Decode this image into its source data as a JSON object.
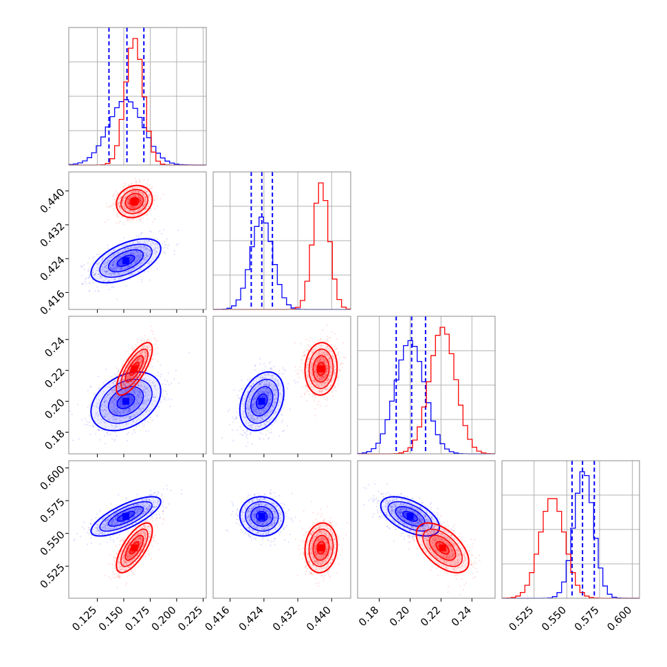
{
  "chart_data": {
    "type": "corner",
    "parameters": 4,
    "grid": true,
    "colors": {
      "series_a": "#0000ff",
      "series_b": "#ff0000"
    },
    "axes": [
      {
        "range": [
          0.098,
          0.228
        ],
        "ticks": [
          0.125,
          0.15,
          0.175,
          0.2,
          0.225
        ],
        "tick_labels": [
          "0.125",
          "0.150",
          "0.175",
          "0.200",
          "0.225"
        ]
      },
      {
        "range": [
          0.412,
          0.4445
        ],
        "ticks": [
          0.416,
          0.424,
          0.432,
          0.44
        ],
        "tick_labels": [
          "0.416",
          "0.424",
          "0.432",
          "0.440"
        ]
      },
      {
        "range": [
          0.166,
          0.255
        ],
        "ticks": [
          0.18,
          0.2,
          0.22,
          0.24
        ],
        "tick_labels": [
          "0.18",
          "0.20",
          "0.22",
          "0.24"
        ]
      },
      {
        "range": [
          0.5005,
          0.6055
        ],
        "ticks": [
          0.525,
          0.55,
          0.575,
          0.6
        ],
        "tick_labels": [
          "0.525",
          "0.550",
          "0.575",
          "0.600"
        ]
      }
    ],
    "series": [
      {
        "color": "#0000ff",
        "mean": [
          0.152,
          0.4235,
          0.2,
          0.563
        ],
        "std": [
          0.0165,
          0.0026,
          0.0095,
          0.0075
        ],
        "quantiles": [
          [
            0.136,
            0.153,
            0.169
          ],
          [
            0.421,
            0.4235,
            0.426
          ],
          [
            0.191,
            0.201,
            0.21
          ],
          [
            0.554,
            0.562,
            0.571
          ]
        ],
        "correlations": {
          "0-1": 0.55,
          "0-2": 0.35,
          "0-3": 0.75,
          "1-2": 0.3,
          "1-3": -0.05,
          "2-3": -0.55
        }
      },
      {
        "color": "#ff0000",
        "mean": [
          0.16,
          0.4375,
          0.221,
          0.539
        ],
        "std": [
          0.0085,
          0.0019,
          0.0085,
          0.0095
        ],
        "quantiles": [],
        "correlations": {
          "0-1": 0.15,
          "0-2": 0.75,
          "0-3": 0.7,
          "1-2": 0.05,
          "1-3": 0.1,
          "2-3": -0.55
        }
      }
    ]
  }
}
